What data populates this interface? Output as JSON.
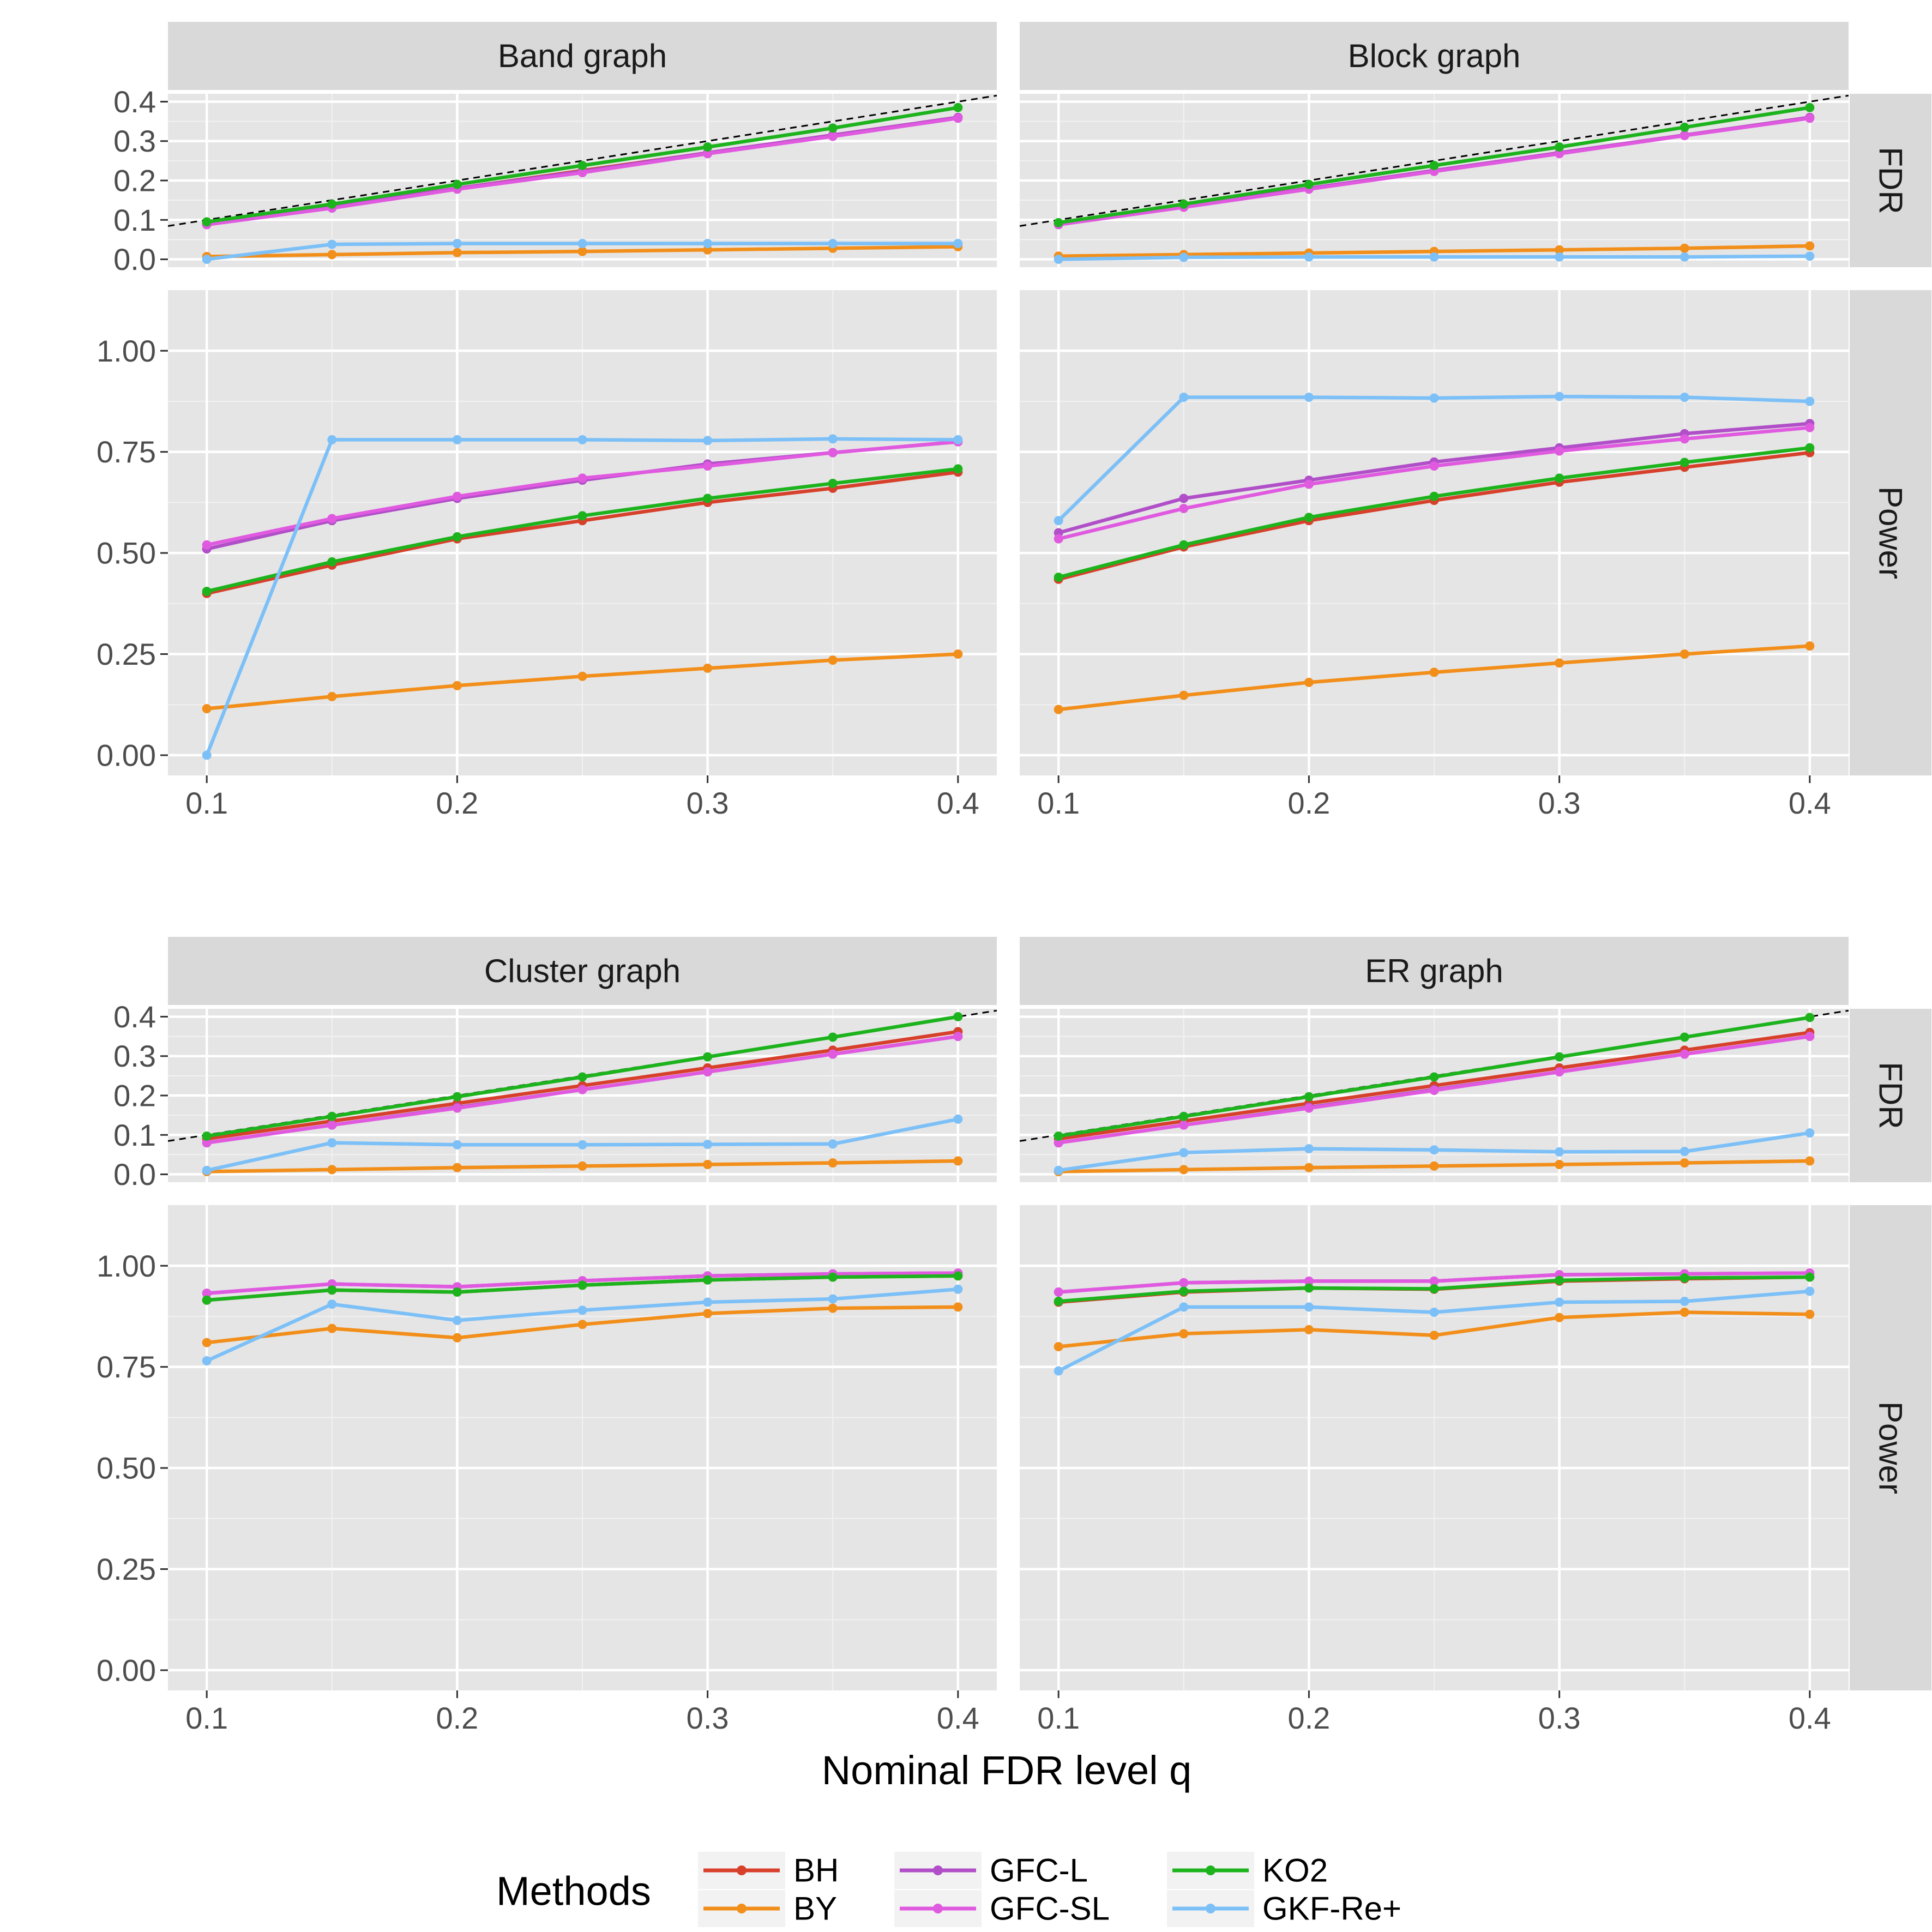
{
  "chart_data": {
    "type": "line",
    "xlabel": "Nominal FDR level q",
    "x": [
      0.1,
      0.15,
      0.2,
      0.25,
      0.3,
      0.35,
      0.4
    ],
    "x_ticks": [
      "0.1",
      "0.2",
      "0.3",
      "0.4"
    ],
    "reference_line": "y = q (dashed, FDR rows)",
    "rows": [
      {
        "label": "FDR",
        "ylim": [
          -0.02,
          0.42
        ],
        "ticks": [
          "0.0",
          "0.1",
          "0.2",
          "0.3",
          "0.4"
        ]
      },
      {
        "label": "Power",
        "ylim": [
          -0.05,
          1.15
        ],
        "ticks": [
          "0.00",
          "0.25",
          "0.50",
          "0.75",
          "1.00"
        ]
      }
    ],
    "legend": {
      "title": "Methods",
      "entries": [
        {
          "name": "BH",
          "color": "#d7402b"
        },
        {
          "name": "BY",
          "color": "#f28e1a"
        },
        {
          "name": "GFC-L",
          "color": "#b04fc8"
        },
        {
          "name": "GFC-SL",
          "color": "#e05ae0"
        },
        {
          "name": "KO2",
          "color": "#1db31d"
        },
        {
          "name": "GKF-Re+",
          "color": "#7cc0f7"
        }
      ]
    },
    "panels": [
      {
        "title": "Band graph",
        "fdr": {
          "BH": [
            0.09,
            0.135,
            0.18,
            0.225,
            0.27,
            0.315,
            0.36
          ],
          "BY": [
            0.007,
            0.012,
            0.017,
            0.02,
            0.024,
            0.028,
            0.032
          ],
          "GFC-L": [
            0.088,
            0.133,
            0.18,
            0.223,
            0.27,
            0.315,
            0.36
          ],
          "GFC-SL": [
            0.088,
            0.13,
            0.178,
            0.22,
            0.268,
            0.312,
            0.358
          ],
          "KO2": [
            0.095,
            0.14,
            0.19,
            0.238,
            0.285,
            0.333,
            0.385
          ],
          "GKF-Re+": [
            0.0,
            0.038,
            0.04,
            0.04,
            0.04,
            0.04,
            0.04
          ]
        },
        "power": {
          "BH": [
            0.4,
            0.47,
            0.535,
            0.58,
            0.625,
            0.66,
            0.7
          ],
          "BY": [
            0.115,
            0.145,
            0.172,
            0.195,
            0.215,
            0.235,
            0.25
          ],
          "GFC-L": [
            0.51,
            0.58,
            0.635,
            0.68,
            0.72,
            0.748,
            0.775
          ],
          "GFC-SL": [
            0.52,
            0.585,
            0.64,
            0.685,
            0.715,
            0.748,
            0.775
          ],
          "KO2": [
            0.405,
            0.478,
            0.54,
            0.592,
            0.635,
            0.672,
            0.708
          ],
          "GKF-Re+": [
            0.0,
            0.78,
            0.78,
            0.78,
            0.778,
            0.782,
            0.78
          ]
        }
      },
      {
        "title": "Block graph",
        "fdr": {
          "BH": [
            0.09,
            0.135,
            0.18,
            0.225,
            0.27,
            0.315,
            0.36
          ],
          "BY": [
            0.008,
            0.012,
            0.016,
            0.02,
            0.024,
            0.028,
            0.034
          ],
          "GFC-L": [
            0.088,
            0.133,
            0.18,
            0.225,
            0.27,
            0.315,
            0.36
          ],
          "GFC-SL": [
            0.088,
            0.132,
            0.178,
            0.223,
            0.268,
            0.314,
            0.358
          ],
          "KO2": [
            0.093,
            0.14,
            0.19,
            0.238,
            0.285,
            0.335,
            0.385
          ],
          "GKF-Re+": [
            0.0,
            0.005,
            0.006,
            0.006,
            0.006,
            0.006,
            0.008
          ]
        },
        "power": {
          "BH": [
            0.435,
            0.515,
            0.58,
            0.63,
            0.675,
            0.712,
            0.748
          ],
          "BY": [
            0.113,
            0.148,
            0.18,
            0.205,
            0.228,
            0.25,
            0.27
          ],
          "GFC-L": [
            0.55,
            0.635,
            0.68,
            0.725,
            0.76,
            0.795,
            0.82
          ],
          "GFC-SL": [
            0.535,
            0.61,
            0.67,
            0.715,
            0.752,
            0.782,
            0.81
          ],
          "KO2": [
            0.44,
            0.52,
            0.588,
            0.64,
            0.685,
            0.724,
            0.76
          ],
          "GKF-Re+": [
            0.58,
            0.885,
            0.885,
            0.883,
            0.887,
            0.885,
            0.875
          ]
        }
      },
      {
        "title": "Cluster graph",
        "fdr": {
          "BH": [
            0.09,
            0.135,
            0.18,
            0.225,
            0.27,
            0.315,
            0.362
          ],
          "BY": [
            0.007,
            0.012,
            0.017,
            0.021,
            0.025,
            0.029,
            0.034
          ],
          "GFC-L": [
            0.08,
            0.125,
            0.17,
            0.215,
            0.26,
            0.305,
            0.35
          ],
          "GFC-SL": [
            0.08,
            0.125,
            0.168,
            0.215,
            0.26,
            0.305,
            0.35
          ],
          "KO2": [
            0.097,
            0.147,
            0.197,
            0.247,
            0.298,
            0.348,
            0.4
          ],
          "GKF-Re+": [
            0.01,
            0.08,
            0.075,
            0.075,
            0.076,
            0.077,
            0.14
          ]
        },
        "power": {
          "BH": [
            0.915,
            0.94,
            0.935,
            0.952,
            0.965,
            0.972,
            0.975
          ],
          "BY": [
            0.81,
            0.845,
            0.822,
            0.855,
            0.882,
            0.895,
            0.898
          ],
          "GFC-L": [
            0.932,
            0.955,
            0.948,
            0.963,
            0.975,
            0.98,
            0.982
          ],
          "GFC-SL": [
            0.932,
            0.955,
            0.948,
            0.963,
            0.975,
            0.98,
            0.982
          ],
          "KO2": [
            0.915,
            0.94,
            0.935,
            0.952,
            0.965,
            0.972,
            0.975
          ],
          "GKF-Re+": [
            0.765,
            0.905,
            0.865,
            0.89,
            0.91,
            0.918,
            0.942
          ]
        }
      },
      {
        "title": "ER graph",
        "fdr": {
          "BH": [
            0.09,
            0.135,
            0.18,
            0.225,
            0.27,
            0.315,
            0.36
          ],
          "BY": [
            0.007,
            0.012,
            0.017,
            0.021,
            0.025,
            0.029,
            0.034
          ],
          "GFC-L": [
            0.08,
            0.125,
            0.17,
            0.215,
            0.26,
            0.305,
            0.35
          ],
          "GFC-SL": [
            0.08,
            0.125,
            0.168,
            0.213,
            0.26,
            0.305,
            0.35
          ],
          "KO2": [
            0.097,
            0.147,
            0.197,
            0.247,
            0.298,
            0.348,
            0.398
          ],
          "GKF-Re+": [
            0.01,
            0.055,
            0.065,
            0.062,
            0.057,
            0.058,
            0.105
          ]
        },
        "power": {
          "BH": [
            0.91,
            0.935,
            0.945,
            0.942,
            0.962,
            0.968,
            0.972
          ],
          "BY": [
            0.8,
            0.832,
            0.842,
            0.828,
            0.872,
            0.885,
            0.88
          ],
          "GFC-L": [
            0.935,
            0.958,
            0.962,
            0.962,
            0.978,
            0.98,
            0.982
          ],
          "GFC-SL": [
            0.935,
            0.958,
            0.962,
            0.962,
            0.978,
            0.98,
            0.982
          ],
          "KO2": [
            0.912,
            0.937,
            0.945,
            0.943,
            0.964,
            0.97,
            0.972
          ],
          "GKF-Re+": [
            0.74,
            0.898,
            0.898,
            0.885,
            0.91,
            0.912,
            0.937
          ]
        }
      }
    ]
  }
}
